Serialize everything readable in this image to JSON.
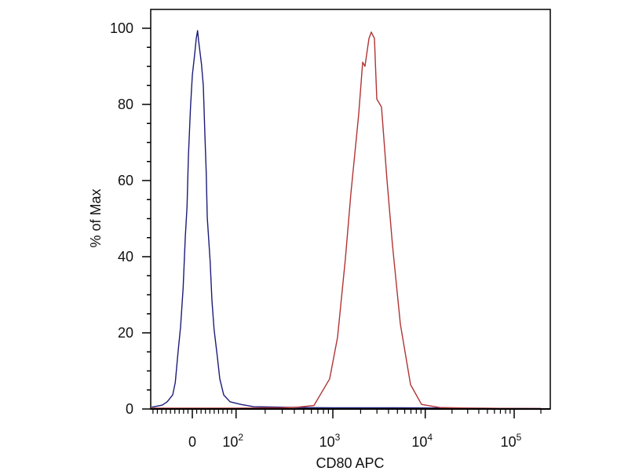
{
  "chart_data": {
    "type": "line",
    "title": "",
    "xlabel": "CD80 APC",
    "ylabel": "% of Max",
    "x_scale": "biexponential (linear near 0, log above 10^2)",
    "xlim": [
      -90,
      220000
    ],
    "ylim": [
      0,
      105
    ],
    "grid": false,
    "legend": "none",
    "y_ticks": [
      0,
      20,
      40,
      60,
      80,
      100
    ],
    "x_ticks": [
      {
        "value": 0,
        "base": "0",
        "exp": ""
      },
      {
        "value": 100,
        "base": "10",
        "exp": "2"
      },
      {
        "value": 1000,
        "base": "10",
        "exp": "3"
      },
      {
        "value": 10000,
        "base": "10",
        "exp": "4"
      },
      {
        "value": 100000,
        "base": "10",
        "exp": "5"
      }
    ],
    "series": [
      {
        "color": "#1c1c78",
        "x": [
          -93,
          -86.7,
          -68.8,
          -57.5,
          -44.9,
          -39,
          -32.9,
          -26.9,
          -21,
          -16.2,
          -12,
          -9,
          -4.1,
          0,
          5.4,
          9,
          12,
          14.4,
          21,
          25.1,
          28.7,
          31.8,
          34.1,
          40.8,
          44.9,
          49.7,
          56.9,
          62.8,
          71.8,
          86.2,
          112,
          152,
          400,
          1000,
          5000,
          30000,
          200000
        ],
        "y": [
          0.5,
          0.6,
          1.0,
          1.9,
          3.7,
          7.0,
          14.7,
          21.5,
          31.8,
          45,
          53.3,
          66.3,
          79.3,
          87.6,
          93.2,
          97.3,
          99.4,
          96.7,
          90.5,
          84.9,
          72.1,
          62.2,
          50.4,
          38.8,
          28.5,
          20.9,
          14.0,
          7.9,
          3.7,
          1.9,
          1.2,
          0.6,
          0.4,
          0.3,
          0.3,
          0.2,
          0.1
        ]
      },
      {
        "color": "#b03434",
        "x": [
          -93,
          0,
          100,
          300,
          440,
          638,
          927,
          1125,
          1368,
          1567,
          1905,
          2102,
          2228,
          2460,
          2607,
          2818,
          2993,
          3365,
          3858,
          4424,
          5380,
          6930,
          9120,
          14500,
          32700,
          200000
        ],
        "y": [
          0.2,
          0.2,
          0.2,
          0.3,
          0.5,
          0.9,
          7.9,
          18.8,
          39.5,
          56.6,
          77.3,
          91.1,
          90.0,
          97.3,
          99.0,
          97.3,
          81.4,
          79.3,
          60.1,
          43.0,
          22.3,
          6.4,
          1.2,
          0.4,
          0.2,
          0.1
        ]
      }
    ]
  }
}
